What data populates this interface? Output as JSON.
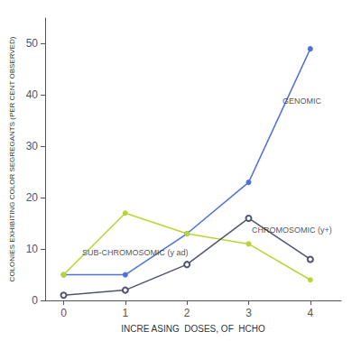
{
  "chart_data": {
    "type": "line",
    "xlabel": "INCRE ASING  DOSES, OF  HCHO",
    "ylabel": "COLONIES EXHIBITING COLOR SEGREGANTS (PER CENT OBSERVED)",
    "x": [
      0,
      1,
      2,
      3,
      4
    ],
    "series": [
      {
        "values": [
          5,
          5,
          13,
          23,
          49
        ],
        "marker": "circle",
        "line_style": "solid"
      },
      {
        "values": [
          5,
          17,
          13,
          11,
          4
        ],
        "marker": "circle",
        "line_style": "solid"
      },
      {
        "values": [
          1,
          2,
          7,
          16,
          8
        ],
        "marker": "open_circle",
        "line_style": "solid"
      }
    ],
    "annotations": [
      {
        "text": "GENOMIC",
        "x": 3.55,
        "y": 38
      },
      {
        "text": "SUB-CHROMOSOMIC (y ad)",
        "x": 0.3,
        "y": 8.5
      },
      {
        "text": "CHROMOSOMIC (y+)",
        "x": 3.05,
        "y": 13.0
      }
    ],
    "xlim": [
      -0.3,
      4.5
    ],
    "xticks": [
      0,
      1,
      2,
      3,
      4
    ],
    "ylim": [
      0,
      55
    ],
    "yticks": [
      0,
      10,
      20,
      30,
      40,
      50
    ],
    "grid": false
  }
}
